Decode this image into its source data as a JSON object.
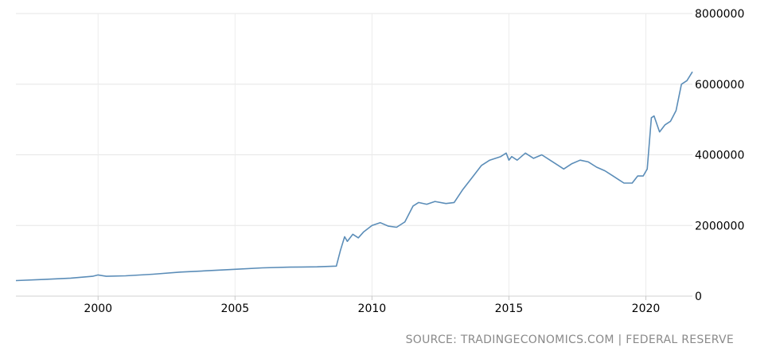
{
  "chart_data": {
    "type": "line",
    "title": "",
    "xlabel": "",
    "ylabel": "",
    "xlim": [
      1997.0,
      2021.7
    ],
    "ylim": [
      0,
      8000000
    ],
    "x_ticks": [
      2000,
      2005,
      2010,
      2015,
      2020
    ],
    "x_tick_labels": [
      "2000",
      "2005",
      "2010",
      "2015",
      "2020"
    ],
    "y_ticks": [
      0,
      2000000,
      4000000,
      6000000,
      8000000
    ],
    "y_tick_labels": [
      "0",
      "2000000",
      "4000000",
      "6000000",
      "8000000"
    ],
    "grid": true,
    "legend": "none",
    "line_color": "#5b8db8",
    "series": [
      {
        "x": [
          1997.0,
          1998.0,
          1999.0,
          1999.8,
          2000.0,
          2000.3,
          2001.0,
          2002.0,
          2003.0,
          2004.0,
          2005.0,
          2006.0,
          2007.0,
          2008.0,
          2008.7,
          2008.85,
          2009.0,
          2009.1,
          2009.3,
          2009.5,
          2009.7,
          2010.0,
          2010.3,
          2010.6,
          2010.9,
          2011.2,
          2011.5,
          2011.7,
          2012.0,
          2012.3,
          2012.7,
          2013.0,
          2013.3,
          2013.7,
          2014.0,
          2014.3,
          2014.7,
          2014.9,
          2015.0,
          2015.1,
          2015.3,
          2015.6,
          2015.9,
          2016.2,
          2016.5,
          2016.8,
          2017.0,
          2017.3,
          2017.6,
          2017.9,
          2018.2,
          2018.5,
          2018.8,
          2019.0,
          2019.2,
          2019.5,
          2019.7,
          2019.9,
          2020.05,
          2020.2,
          2020.3,
          2020.5,
          2020.7,
          2020.9,
          2021.0,
          2021.1,
          2021.3,
          2021.5,
          2021.7
        ],
        "y": [
          440000,
          470000,
          510000,
          560000,
          600000,
          560000,
          575000,
          620000,
          680000,
          720000,
          760000,
          800000,
          820000,
          830000,
          850000,
          1300000,
          1680000,
          1550000,
          1750000,
          1650000,
          1820000,
          2000000,
          2080000,
          1980000,
          1950000,
          2100000,
          2550000,
          2650000,
          2600000,
          2680000,
          2620000,
          2650000,
          3000000,
          3400000,
          3700000,
          3850000,
          3950000,
          4050000,
          3850000,
          3950000,
          3850000,
          4050000,
          3900000,
          4000000,
          3850000,
          3700000,
          3600000,
          3750000,
          3850000,
          3800000,
          3650000,
          3550000,
          3400000,
          3300000,
          3200000,
          3200000,
          3400000,
          3400000,
          3600000,
          5050000,
          5100000,
          4650000,
          4850000,
          4950000,
          5100000,
          5250000,
          6000000,
          6100000,
          6350000
        ]
      }
    ]
  },
  "source_text": "SOURCE: TRADINGECONOMICS.COM | FEDERAL RESERVE"
}
